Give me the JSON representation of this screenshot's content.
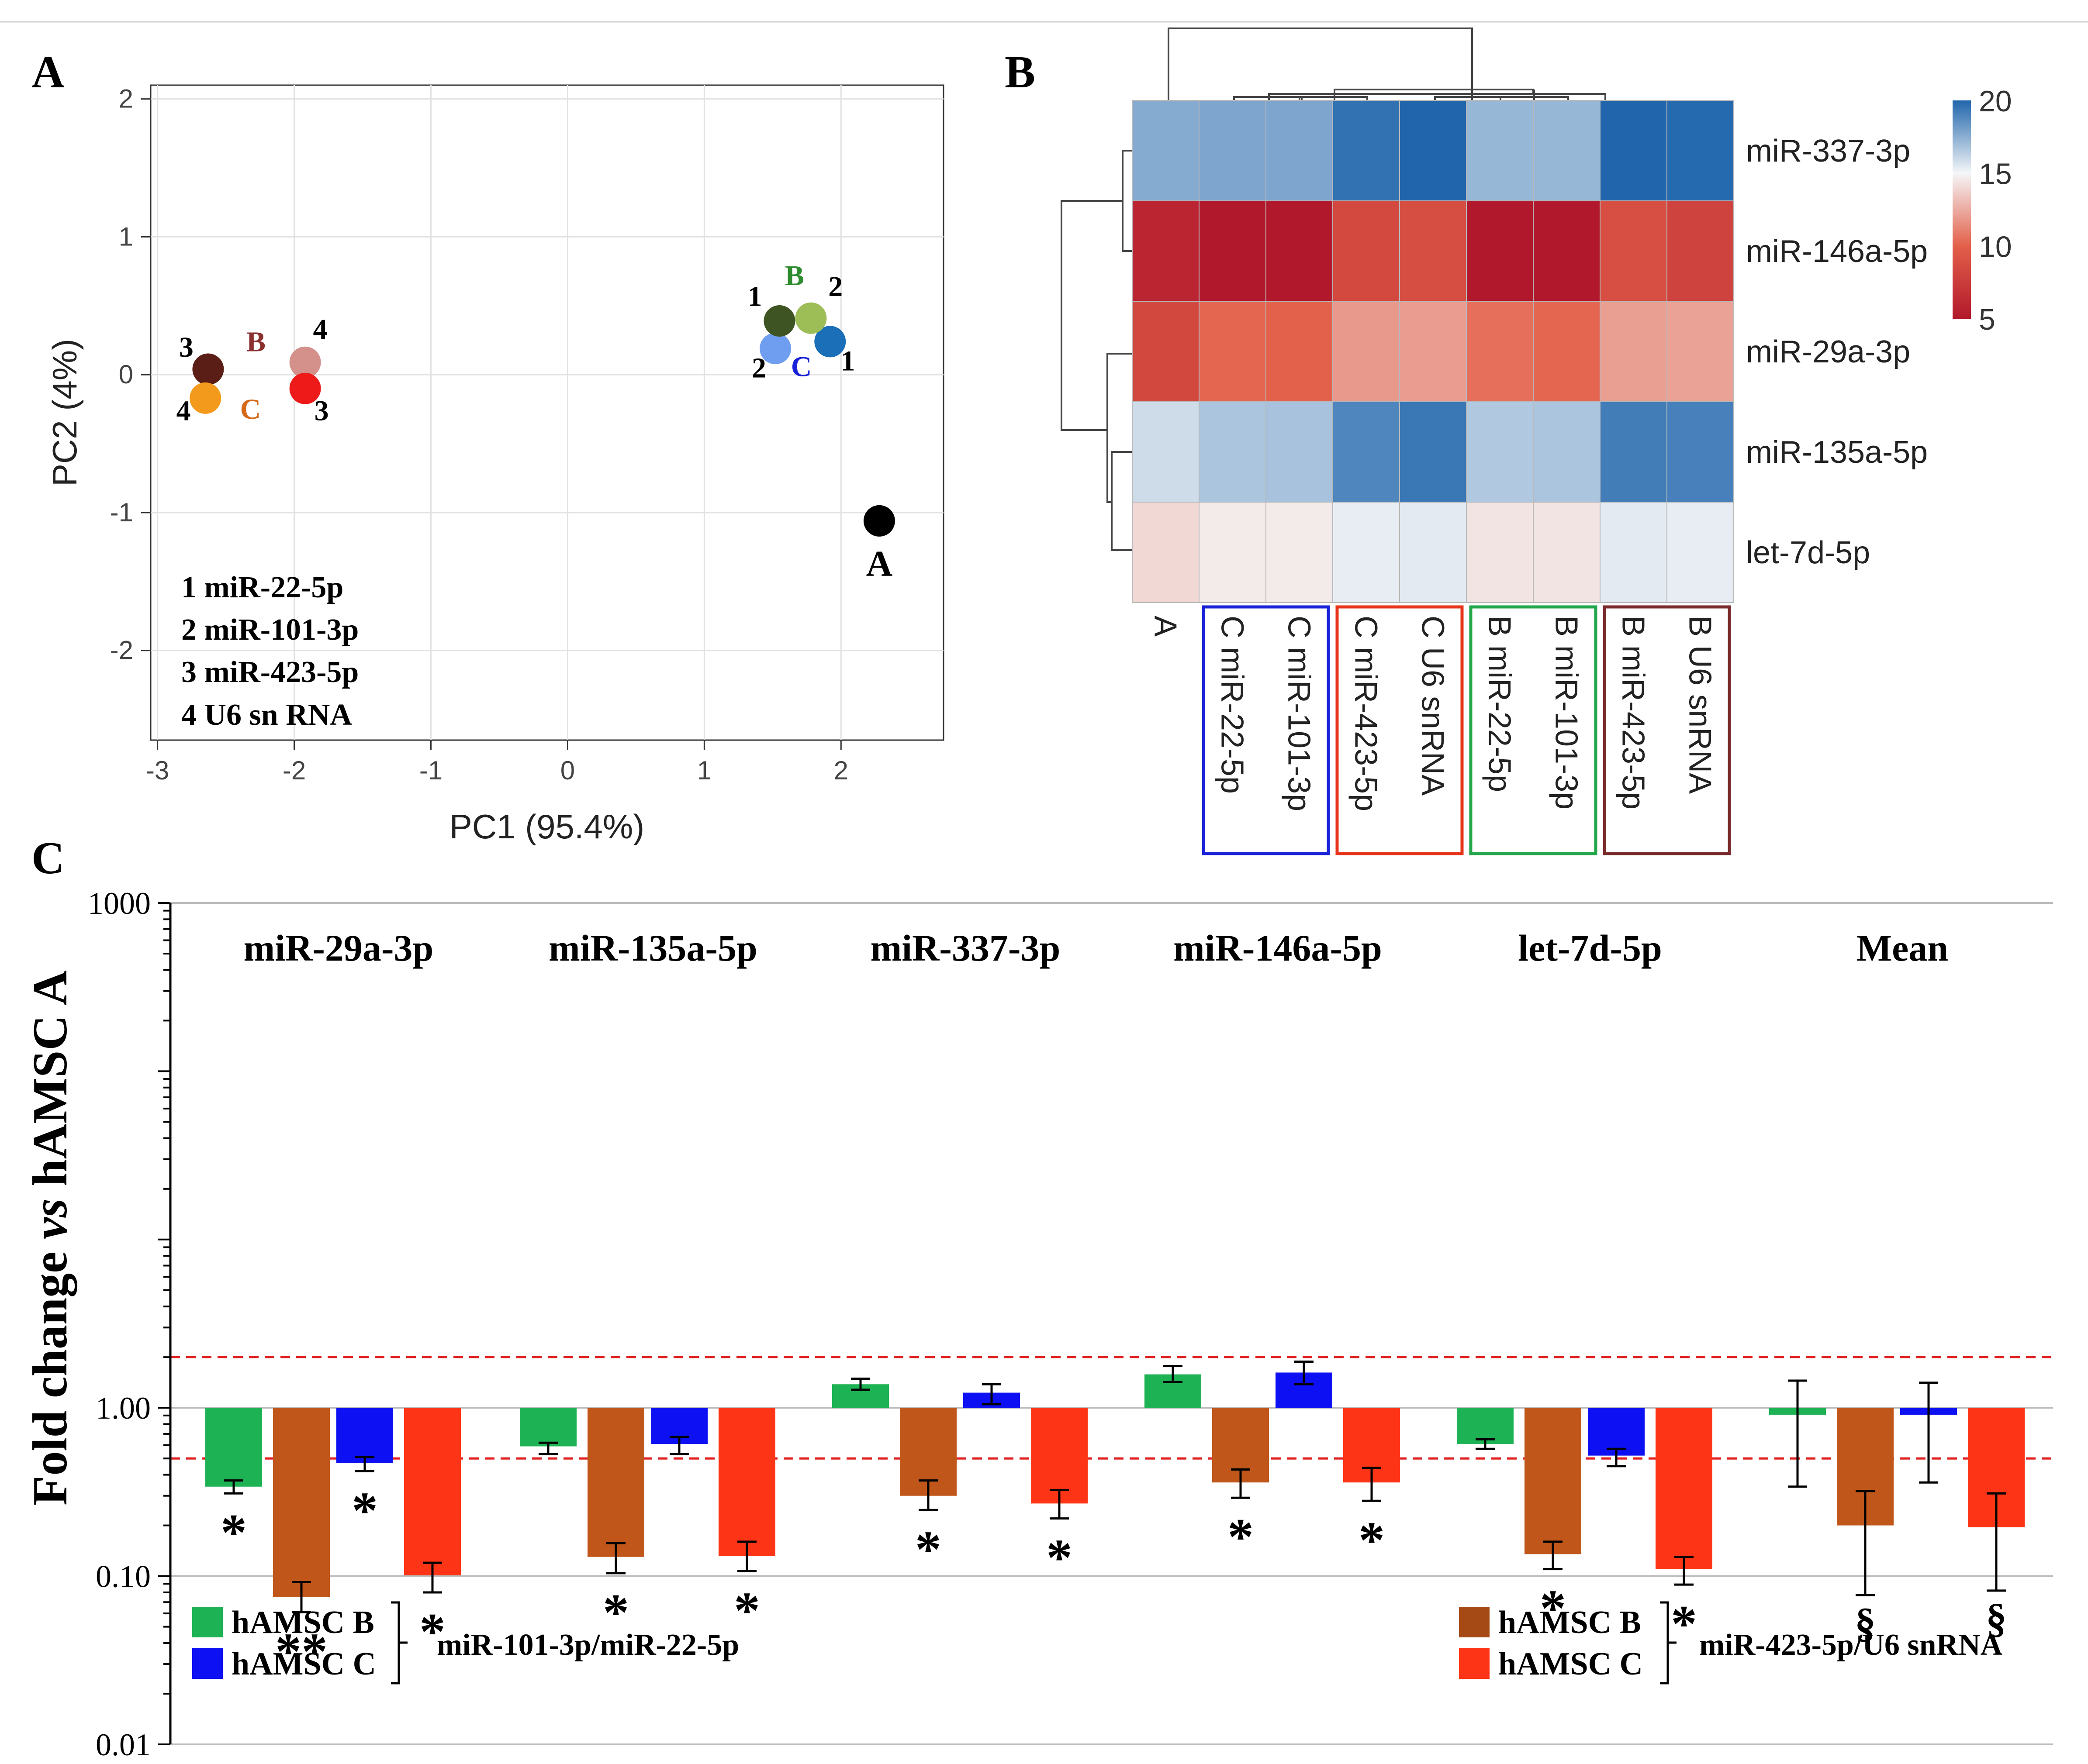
{
  "figure": {
    "panel_labels": {
      "a": "A",
      "b": "B",
      "c": "C"
    }
  },
  "chart_data": [
    {
      "type": "scatter",
      "panel": "A",
      "xlabel": "PC1 (95.4%)",
      "ylabel": "PC2 (4%)",
      "xlim": [
        -3.05,
        2.75
      ],
      "ylim": [
        -2.65,
        2.1
      ],
      "xticks": [
        -3,
        -2,
        -1,
        0,
        1,
        2
      ],
      "yticks": [
        -2,
        -1,
        0,
        1,
        2
      ],
      "grid": true,
      "points": [
        {
          "id": "A",
          "x": 2.28,
          "y": -1.06,
          "color": "#000000"
        },
        {
          "id": "C1",
          "x": 1.92,
          "y": 0.24,
          "color": "#1a6fb8"
        },
        {
          "id": "C2",
          "x": 1.52,
          "y": 0.19,
          "color": "#6f9ef0"
        },
        {
          "id": "B1",
          "x": 1.55,
          "y": 0.39,
          "color": "#3f5423"
        },
        {
          "id": "B2",
          "x": 1.78,
          "y": 0.41,
          "color": "#9dbd57"
        },
        {
          "id": "B3",
          "x": -2.63,
          "y": 0.04,
          "color": "#5a1e16"
        },
        {
          "id": "B4",
          "x": -1.92,
          "y": 0.09,
          "color": "#d4918c"
        },
        {
          "id": "C3",
          "x": -1.92,
          "y": -0.1,
          "color": "#ee1a1a"
        },
        {
          "id": "C4",
          "x": -2.65,
          "y": -0.17,
          "color": "#f39a1c"
        }
      ],
      "annotations": [
        {
          "text": "1",
          "x": 1.37,
          "y": 0.5,
          "color": "#000000"
        },
        {
          "text": "B",
          "x": 1.66,
          "y": 0.65,
          "color": "#2e8b2e"
        },
        {
          "text": "2",
          "x": 1.96,
          "y": 0.57,
          "color": "#000000"
        },
        {
          "text": "2",
          "x": 1.4,
          "y": -0.02,
          "color": "#000000"
        },
        {
          "text": "C",
          "x": 1.71,
          "y": -0.01,
          "color": "#1a22d8"
        },
        {
          "text": "1",
          "x": 2.05,
          "y": 0.03,
          "color": "#000000"
        },
        {
          "text": "3",
          "x": -2.79,
          "y": 0.13,
          "color": "#000000"
        },
        {
          "text": "B",
          "x": -2.28,
          "y": 0.17,
          "color": "#8b2f2f"
        },
        {
          "text": "4",
          "x": -1.81,
          "y": 0.26,
          "color": "#000000"
        },
        {
          "text": "4",
          "x": -2.81,
          "y": -0.33,
          "color": "#000000"
        },
        {
          "text": "C",
          "x": -2.32,
          "y": -0.32,
          "color": "#d46a1a"
        },
        {
          "text": "3",
          "x": -1.8,
          "y": -0.33,
          "color": "#000000"
        },
        {
          "text": "A",
          "x": 2.28,
          "y": -1.46,
          "color": "#000000"
        }
      ],
      "legend": [
        "1 miR-22-5p",
        "2 miR-101-3p",
        "3 miR-423-5p",
        "4 U6 sn RNA"
      ]
    },
    {
      "type": "heatmap",
      "panel": "B",
      "rows": [
        "miR-337-3p",
        "miR-146a-5p",
        "miR-29a-3p",
        "miR-135a-5p",
        "let-7d-5p"
      ],
      "columns": [
        "A",
        "C miR-22-5p",
        "C miR-101-3p",
        "C miR-423-5p",
        "C U6 snRNA",
        "B miR-22-5p",
        "B miR-101-3p",
        "B miR-423-5p",
        "B U6 snRNA"
      ],
      "values": [
        [
          17.6,
          17.8,
          17.8,
          19.6,
          20.3,
          17.2,
          17.2,
          20.5,
          19.9
        ],
        [
          5.9,
          4.8,
          4.9,
          8.4,
          8.7,
          4.7,
          4.6,
          8.8,
          8.0
        ],
        [
          8.3,
          10.2,
          10.0,
          11.9,
          12.0,
          10.5,
          10.2,
          12.1,
          12.2
        ],
        [
          15.9,
          16.7,
          16.8,
          18.9,
          19.4,
          16.6,
          16.7,
          19.2,
          19.1
        ],
        [
          14.0,
          14.6,
          14.6,
          15.3,
          15.4,
          14.4,
          14.4,
          15.4,
          15.3
        ]
      ],
      "colorbar": {
        "min": 5,
        "max": 20,
        "ticks": [
          20,
          15,
          10,
          5
        ]
      },
      "column_groups": [
        {
          "columns": [
            1,
            2
          ],
          "color": "#1a22d8"
        },
        {
          "columns": [
            3,
            4
          ],
          "color": "#e8331b"
        },
        {
          "columns": [
            5,
            6
          ],
          "color": "#23a64a"
        },
        {
          "columns": [
            7,
            8
          ],
          "color": "#7a2a2a"
        }
      ]
    },
    {
      "type": "bar",
      "panel": "C",
      "yscale": "log",
      "ylim": [
        0.01,
        1000
      ],
      "yticks": [
        "0.01",
        "0.10",
        "1.00",
        "1000"
      ],
      "ylabel_pre": "Fold change ",
      "ylabel_vs": "vs",
      "ylabel_post": " hAMSC A",
      "reference_lines": [
        2.0,
        0.5
      ],
      "categories": [
        "miR-29a-3p",
        "miR-135a-5p",
        "miR-337-3p",
        "miR-146a-5p",
        "let-7d-5p",
        "Mean"
      ],
      "series": [
        {
          "name": "hAMSC B",
          "group": "miR-101-3p/miR-22-5p",
          "color": "#1db354",
          "values": [
            0.34,
            0.59,
            1.38,
            1.58,
            0.61,
            0.91
          ],
          "errors": [
            [
              0.31,
              0.37
            ],
            [
              0.53,
              0.62
            ],
            [
              1.28,
              1.49
            ],
            [
              1.42,
              1.77
            ],
            [
              0.57,
              0.65
            ],
            [
              0.34,
              1.45
            ]
          ],
          "marks": [
            "*",
            "",
            "",
            "",
            "",
            ""
          ]
        },
        {
          "name": "hAMSC B",
          "group": "miR-423-5p/U6 snRNA",
          "color": "#c0561a",
          "values": [
            0.075,
            0.13,
            0.3,
            0.36,
            0.135,
            0.2
          ],
          "errors": [
            [
              0.061,
              0.092
            ],
            [
              0.104,
              0.157
            ],
            [
              0.247,
              0.37
            ],
            [
              0.292,
              0.43
            ],
            [
              0.11,
              0.16
            ],
            [
              0.077,
              0.32
            ]
          ],
          "marks": [
            "**",
            "*",
            "*",
            "*",
            "*",
            "§"
          ]
        },
        {
          "name": "hAMSC C",
          "group": "miR-101-3p/miR-22-5p",
          "color": "#0c10f2",
          "values": [
            0.47,
            0.61,
            1.23,
            1.62,
            0.52,
            0.91
          ],
          "errors": [
            [
              0.42,
              0.51
            ],
            [
              0.53,
              0.67
            ],
            [
              1.05,
              1.38
            ],
            [
              1.38,
              1.88
            ],
            [
              0.45,
              0.57
            ],
            [
              0.36,
              1.41
            ]
          ],
          "marks": [
            "*",
            "",
            "",
            "",
            "",
            ""
          ]
        },
        {
          "name": "hAMSC C",
          "group": "miR-423-5p/U6 snRNA",
          "color": "#fd3516",
          "values": [
            0.101,
            0.132,
            0.27,
            0.36,
            0.11,
            0.195
          ],
          "errors": [
            [
              0.08,
              0.12
            ],
            [
              0.107,
              0.16
            ],
            [
              0.22,
              0.325
            ],
            [
              0.28,
              0.44
            ],
            [
              0.089,
              0.13
            ],
            [
              0.082,
              0.31
            ]
          ],
          "marks": [
            "*",
            "*",
            "*",
            "*",
            "*",
            "§"
          ]
        }
      ],
      "legend": {
        "left": {
          "items": [
            "hAMSC B",
            "hAMSC C"
          ],
          "colors": [
            "#1db354",
            "#0c10f2"
          ],
          "label": "miR-101-3p/miR-22-5p"
        },
        "right": {
          "items": [
            "hAMSC B",
            "hAMSC C"
          ],
          "colors": [
            "#a54a14",
            "#fd3516"
          ],
          "label": "miR-423-5p/U6 snRNA"
        }
      }
    }
  ]
}
